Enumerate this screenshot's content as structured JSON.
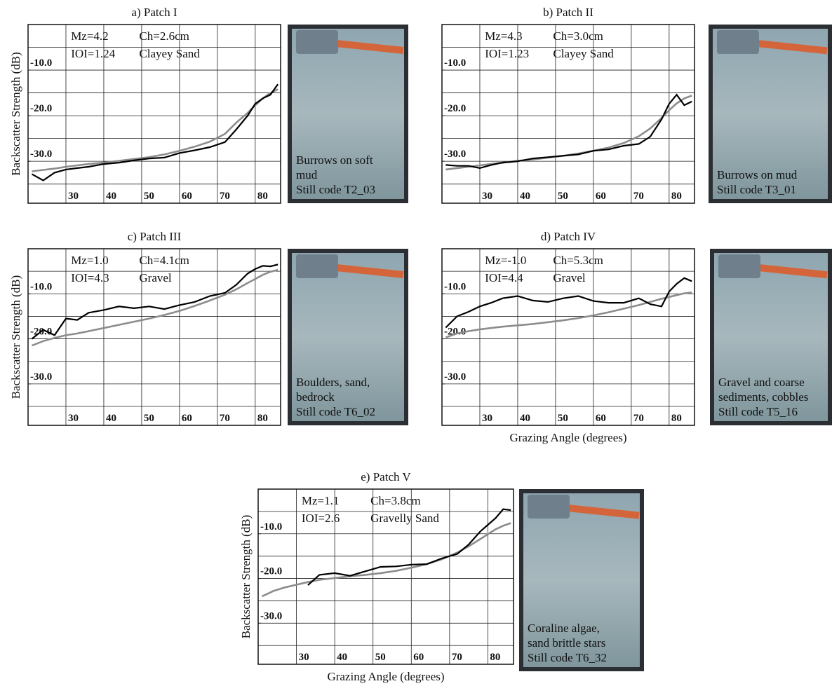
{
  "chart_data": [
    {
      "type": "line",
      "title": "a) Patch I",
      "y_label": "Backscatter Strength (dB)",
      "annotations": [
        "Mz=4.2",
        "Ch=2.6cm",
        "IOI=1.24",
        "Clayey Sand"
      ],
      "photo_caption": [
        "Burrows on soft",
        "mud",
        "Still code T2_03"
      ],
      "x": [
        21,
        24,
        27,
        30,
        33,
        36,
        40,
        44,
        48,
        52,
        56,
        60,
        64,
        68,
        72,
        75,
        78,
        80,
        82,
        84,
        86
      ],
      "series": [
        {
          "color": "#000000",
          "values": [
            -32.8,
            -34.2,
            -32.5,
            -31.8,
            -31.5,
            -31.2,
            -30.6,
            -30.3,
            -29.8,
            -29.4,
            -29.2,
            -28.2,
            -27.6,
            -26.9,
            -25.8,
            -23,
            -20,
            -17.4,
            -16.2,
            -15.4,
            -13.1
          ]
        },
        {
          "color": "#8c8c8c",
          "values": [
            -32.2,
            -31.9,
            -31.6,
            -31.2,
            -30.9,
            -30.6,
            -30.3,
            -29.9,
            -29.5,
            -29.1,
            -28.5,
            -27.7,
            -26.8,
            -25.7,
            -24,
            -21.5,
            -19.4,
            -17.7,
            -16.2,
            -15,
            -14.2
          ]
        }
      ],
      "xlim": [
        20,
        86.7
      ],
      "ylim": [
        -39.2,
        0
      ],
      "xticks": [
        30,
        40,
        50,
        60,
        70,
        80
      ],
      "yticks": [
        {
          "value": -10,
          "label": "-10.0"
        },
        {
          "value": -20,
          "label": "-20.0"
        },
        {
          "value": -30,
          "label": "-30.0"
        }
      ],
      "ygrid": [
        -35,
        -30,
        -25,
        -20,
        -15,
        -10,
        -5
      ]
    },
    {
      "type": "line",
      "title": "b) Patch II",
      "annotations": [
        "Mz=4.3",
        "Ch=3.0cm",
        "IOI=1.23",
        "Clayey Sand"
      ],
      "photo_caption": [
        "Burrows on mud",
        "Still code T3_01"
      ],
      "x": [
        21,
        24,
        27,
        30,
        33,
        36,
        40,
        44,
        48,
        52,
        56,
        60,
        64,
        68,
        72,
        75,
        78,
        80,
        82,
        84,
        86
      ],
      "series": [
        {
          "color": "#000000",
          "values": [
            -30.8,
            -31,
            -31,
            -31.5,
            -30.8,
            -30.3,
            -30,
            -29.4,
            -29.1,
            -28.8,
            -28.5,
            -27.7,
            -27.4,
            -26.6,
            -26.2,
            -24.6,
            -20.8,
            -17.4,
            -15.4,
            -17.7,
            -16.9
          ]
        },
        {
          "color": "#8c8c8c",
          "values": [
            -31.8,
            -31.5,
            -31.2,
            -30.9,
            -30.6,
            -30.3,
            -29.9,
            -29.6,
            -29.2,
            -28.8,
            -28.3,
            -27.7,
            -27,
            -26,
            -24.5,
            -22.8,
            -20.5,
            -18.8,
            -17.3,
            -16.2,
            -15.6
          ]
        }
      ],
      "xlim": [
        20,
        86.7
      ],
      "ylim": [
        -39.2,
        0
      ],
      "xticks": [
        30,
        40,
        50,
        60,
        70,
        80
      ],
      "yticks": [
        {
          "value": -10,
          "label": "-10.0"
        },
        {
          "value": -20,
          "label": "-20.0"
        },
        {
          "value": -30,
          "label": "-30.0"
        }
      ],
      "ygrid": [
        -35,
        -30,
        -25,
        -20,
        -15,
        -10,
        -5
      ]
    },
    {
      "type": "line",
      "title": "c) Patch III",
      "y_label": "Backscatter Strength (dB)",
      "annotations": [
        "Mz=1.0",
        "Ch=4.1cm",
        "IOI=4.3",
        "Gravel"
      ],
      "photo_caption": [
        "Boulders, sand,",
        "bedrock",
        "Still code T6_02"
      ],
      "x": [
        21,
        24,
        27,
        30,
        33,
        36,
        40,
        44,
        48,
        52,
        56,
        60,
        64,
        68,
        72,
        75,
        78,
        80,
        82,
        84,
        86
      ],
      "series": [
        {
          "color": "#000000",
          "values": [
            -20,
            -18,
            -19.2,
            -15.5,
            -15.8,
            -14.2,
            -13.6,
            -12.8,
            -13.2,
            -12.8,
            -13.4,
            -12.5,
            -11.8,
            -10.5,
            -9.8,
            -8,
            -5.5,
            -4.5,
            -3.8,
            -3.9,
            -3.5
          ]
        },
        {
          "color": "#8c8c8c",
          "values": [
            -21.5,
            -20.5,
            -19.8,
            -19.2,
            -18.8,
            -18.3,
            -17.6,
            -16.9,
            -16.2,
            -15.5,
            -14.7,
            -13.8,
            -12.7,
            -11.5,
            -10.2,
            -9,
            -7.6,
            -6.7,
            -5.8,
            -5.1,
            -4.7
          ]
        }
      ],
      "xlim": [
        20,
        86.7
      ],
      "ylim": [
        -39.2,
        0
      ],
      "xticks": [
        30,
        40,
        50,
        60,
        70,
        80
      ],
      "yticks": [
        {
          "value": -10,
          "label": "-10.0"
        },
        {
          "value": -20,
          "label": "-20.0"
        },
        {
          "value": -30,
          "label": "-30.0"
        }
      ],
      "ygrid": [
        -35,
        -30,
        -25,
        -20,
        -15,
        -10,
        -5
      ]
    },
    {
      "type": "line",
      "title": "d) Patch IV",
      "x_label": "Grazing Angle (degrees)",
      "annotations": [
        "Mz=-1.0",
        "Ch=5.3cm",
        "IOI=4.4",
        "Gravel"
      ],
      "photo_caption": [
        "Gravel and coarse",
        "sediments, cobbles",
        "Still code T5_16"
      ],
      "x": [
        21,
        24,
        27,
        30,
        33,
        36,
        40,
        44,
        48,
        52,
        56,
        60,
        64,
        68,
        72,
        75,
        78,
        80,
        82,
        84,
        86
      ],
      "series": [
        {
          "color": "#000000",
          "values": [
            -17.5,
            -15,
            -14,
            -12.8,
            -12,
            -11,
            -10.5,
            -11.5,
            -11.8,
            -11,
            -10.5,
            -11.6,
            -12,
            -12,
            -11,
            -12.3,
            -12.8,
            -9.5,
            -7.8,
            -6.5,
            -7.2
          ]
        },
        {
          "color": "#8c8c8c",
          "values": [
            -19.7,
            -18.8,
            -18.3,
            -17.9,
            -17.6,
            -17.3,
            -17,
            -16.7,
            -16.3,
            -15.9,
            -15.4,
            -14.8,
            -14.1,
            -13.3,
            -12.5,
            -11.8,
            -11.1,
            -10.7,
            -10.3,
            -9.9,
            -9.7
          ]
        }
      ],
      "xlim": [
        20,
        86.7
      ],
      "ylim": [
        -39.2,
        0
      ],
      "xticks": [
        30,
        40,
        50,
        60,
        70,
        80
      ],
      "yticks": [
        {
          "value": -10,
          "label": "-10.0"
        },
        {
          "value": -20,
          "label": "-20.0"
        },
        {
          "value": -30,
          "label": "-30.0"
        }
      ],
      "ygrid": [
        -35,
        -30,
        -25,
        -20,
        -15,
        -10,
        -5
      ]
    },
    {
      "type": "line",
      "title": "e) Patch V",
      "y_label": "Backscatter Strength (dB)",
      "x_label": "Grazing Angle (degrees)",
      "annotations": [
        "Mz=1.1",
        "Ch=3.8cm",
        "IOI=2.6",
        "Gravelly Sand"
      ],
      "photo_caption": [
        "Coraline algae,",
        "sand  brittle stars",
        "Still code T6_32"
      ],
      "x": [
        21,
        24,
        27,
        30,
        33,
        36,
        40,
        44,
        48,
        52,
        56,
        60,
        64,
        68,
        72,
        75,
        78,
        80,
        82,
        84,
        86
      ],
      "series": [
        {
          "color": "#000000",
          "values": [
            null,
            null,
            null,
            null,
            -21.5,
            -19.2,
            -18.8,
            -19.4,
            -18.4,
            -17.4,
            -17.3,
            -16.9,
            -16.8,
            -15.5,
            -14.5,
            -12.4,
            -9.5,
            -8,
            -6.5,
            -4.5,
            -4.7
          ]
        },
        {
          "color": "#8c8c8c",
          "values": [
            -24,
            -22.8,
            -22,
            -21.4,
            -20.8,
            -20.3,
            -19.9,
            -19.5,
            -19.2,
            -18.8,
            -18.3,
            -17.6,
            -16.8,
            -15.7,
            -14.2,
            -12.8,
            -11.2,
            -10.1,
            -9,
            -8.2,
            -7.6
          ]
        }
      ],
      "xlim": [
        20,
        86.7
      ],
      "ylim": [
        -39.2,
        0
      ],
      "xticks": [
        30,
        40,
        50,
        60,
        70,
        80
      ],
      "yticks": [
        {
          "value": -10,
          "label": "-10.0"
        },
        {
          "value": -20,
          "label": "-20.0"
        },
        {
          "value": -30,
          "label": "-30.0"
        }
      ],
      "ygrid": [
        -35,
        -30,
        -25,
        -20,
        -15,
        -10,
        -5
      ]
    }
  ]
}
